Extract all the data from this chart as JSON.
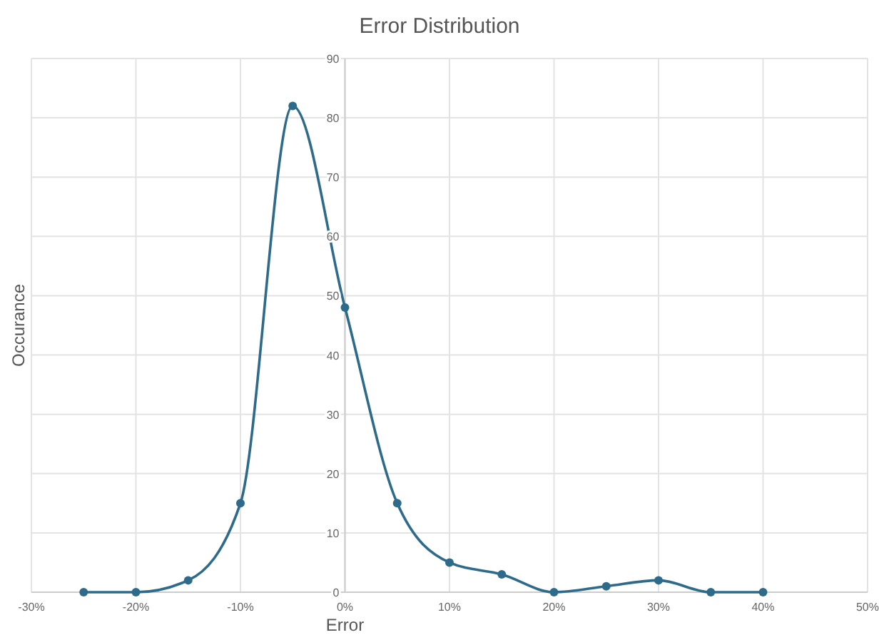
{
  "chart_data": {
    "type": "line",
    "title": "Error Distribution",
    "xlabel": "Error",
    "ylabel": "Occurance",
    "x": [
      -25,
      -20,
      -15,
      -10,
      -5,
      0,
      5,
      10,
      15,
      20,
      25,
      30,
      35,
      40
    ],
    "series": [
      {
        "color": "#2e6b8a",
        "values": [
          0,
          0,
          2,
          15,
          82,
          48,
          15,
          5,
          3,
          0,
          1,
          2,
          0,
          0
        ]
      }
    ],
    "xlim": [
      -30,
      50
    ],
    "xticks": [
      {
        "value": -30,
        "label": "-30%"
      },
      {
        "value": -20,
        "label": "-20%"
      },
      {
        "value": -10,
        "label": "-10%"
      },
      {
        "value": 0,
        "label": "0%"
      },
      {
        "value": 10,
        "label": "10%"
      },
      {
        "value": 20,
        "label": "20%"
      },
      {
        "value": 30,
        "label": "30%"
      },
      {
        "value": 40,
        "label": "40%"
      },
      {
        "value": 50,
        "label": "50%"
      }
    ],
    "ylim": [
      0,
      90
    ],
    "yticks": [
      0,
      10,
      20,
      30,
      40,
      50,
      60,
      70,
      80,
      90
    ],
    "grid": true,
    "marker": "circle",
    "line_style": "solid"
  }
}
